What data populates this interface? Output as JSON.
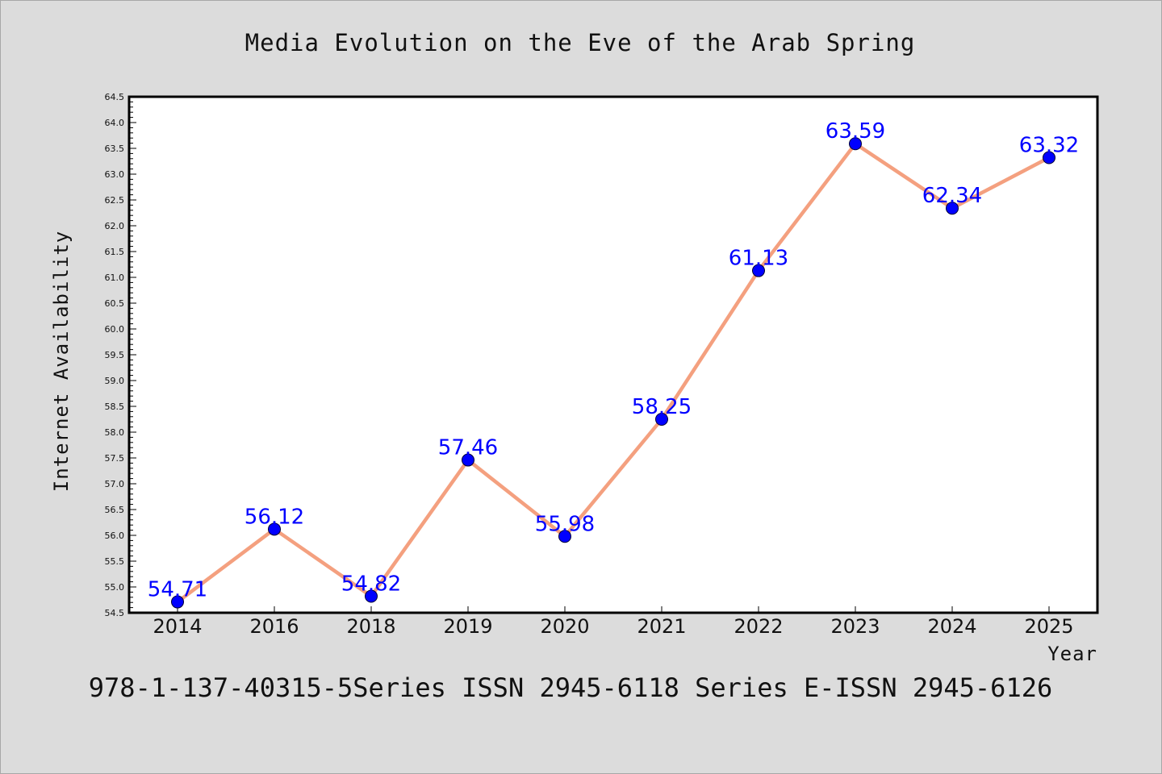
{
  "chart_data": {
    "type": "line",
    "title": "Media Evolution on the Eve of the Arab Spring",
    "xlabel": "Year",
    "ylabel": "Internet Availability",
    "categories": [
      "2014",
      "2016",
      "2018",
      "2019",
      "2020",
      "2021",
      "2022",
      "2023",
      "2024",
      "2025"
    ],
    "series": [
      {
        "values": [
          54.71,
          56.12,
          54.82,
          57.46,
          55.98,
          58.25,
          61.13,
          63.59,
          62.34,
          63.32
        ],
        "labels": [
          "54.71",
          "56.12",
          "54.82",
          "57.46",
          "55.98",
          "58.25",
          "61.13",
          "63.59",
          "62.34",
          "63.32"
        ],
        "line_color": "#f4a07f",
        "marker_color": "#0000ff"
      }
    ],
    "ylim": [
      54.5,
      64.5
    ],
    "yticks": [
      "54.5",
      "55.0",
      "55.5",
      "56.0",
      "56.5",
      "57.0",
      "57.5",
      "58.0",
      "58.5",
      "59.0",
      "59.5",
      "60.0",
      "60.5",
      "61.0",
      "61.5",
      "62.0",
      "62.5",
      "63.0",
      "63.5",
      "64.0",
      "64.5"
    ],
    "grid": false,
    "legend": "none",
    "background": "#dcdcdc",
    "plot_background": "#ffffff",
    "label_color": "#0000ff"
  },
  "footnote": "978-1-137-40315-5Series ISSN 2945-6118 Series E-ISSN 2945-6126"
}
